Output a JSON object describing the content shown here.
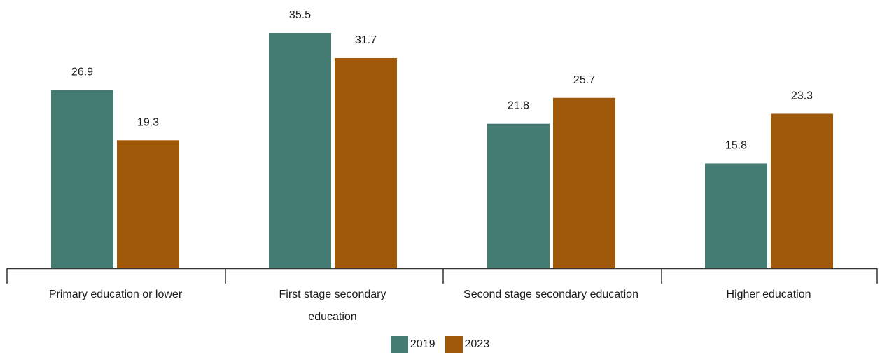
{
  "chart_data": {
    "type": "bar",
    "categories": [
      "Primary education or lower",
      "First stage secondary education",
      "Second stage secondary education",
      "Higher education"
    ],
    "series": [
      {
        "name": "2019",
        "values": [
          26.9,
          35.5,
          21.8,
          15.8
        ],
        "color": "#447c73"
      },
      {
        "name": "2023",
        "values": [
          19.3,
          31.7,
          25.7,
          23.3
        ],
        "color": "#a0590b"
      }
    ],
    "title": "",
    "xlabel": "",
    "ylabel": "",
    "ylim": [
      0,
      35.5
    ],
    "grid": false,
    "legend_position": "bottom-center"
  },
  "legend": {
    "items": [
      {
        "label": "2019",
        "color": "#447c73"
      },
      {
        "label": "2023",
        "color": "#a0590b"
      }
    ]
  }
}
